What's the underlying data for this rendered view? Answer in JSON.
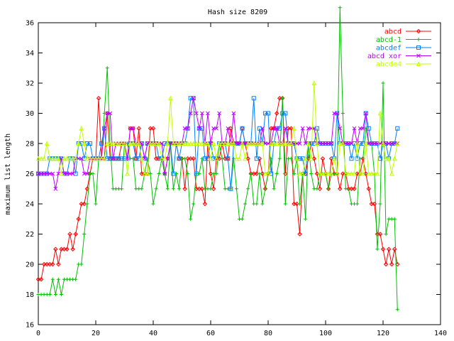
{
  "chart_data": {
    "type": "line",
    "title": "Hash size 8209",
    "xlabel": "",
    "ylabel": "maximum list length",
    "xlim": [
      0,
      140
    ],
    "ylim": [
      16,
      36
    ],
    "x_ticks": [
      0,
      20,
      40,
      60,
      80,
      100,
      120,
      140
    ],
    "y_ticks": [
      16,
      18,
      20,
      22,
      24,
      26,
      28,
      30,
      32,
      34,
      36
    ],
    "grid": false,
    "legend_position": "top-right",
    "series": [
      {
        "name": "abcd",
        "color": "#ff0000",
        "marker": "diamond",
        "values": [
          19,
          19,
          20,
          20,
          20,
          20,
          21,
          20,
          21,
          21,
          21,
          22,
          21,
          22,
          23,
          24,
          24,
          25,
          26,
          27,
          27,
          31,
          27,
          27,
          30,
          27,
          27,
          27,
          27,
          28,
          28,
          27,
          29,
          29,
          27,
          29,
          26,
          26,
          26,
          29,
          29,
          27,
          27,
          27,
          26,
          27,
          28,
          28,
          28,
          27,
          27,
          25,
          27,
          27,
          27,
          25,
          25,
          25,
          24,
          28,
          26,
          25,
          27,
          27,
          28,
          27,
          27,
          29,
          28,
          28,
          28,
          29,
          28,
          27,
          26,
          26,
          26,
          27,
          26,
          25,
          26,
          29,
          29,
          30,
          31,
          31,
          26,
          29,
          29,
          24,
          24,
          22,
          26,
          26,
          27,
          28,
          27,
          26,
          25,
          27,
          26,
          25,
          27,
          26,
          26,
          25,
          26,
          26,
          25,
          25,
          25,
          26,
          26,
          27,
          26,
          25,
          24,
          24,
          22,
          22,
          21,
          20,
          21,
          20,
          21,
          20
        ]
      },
      {
        "name": "abcd-1",
        "color": "#00c000",
        "marker": "plus",
        "values": [
          18,
          18,
          18,
          18,
          18,
          19,
          18,
          19,
          18,
          19,
          19,
          19,
          19,
          19,
          20,
          20,
          22,
          24,
          26,
          26,
          24,
          27,
          27,
          30,
          33,
          28,
          25,
          25,
          25,
          25,
          28,
          28,
          27,
          27,
          25,
          25,
          25,
          26,
          27,
          26,
          24,
          25,
          26,
          27,
          26,
          25,
          28,
          25,
          26,
          25,
          27,
          27,
          26,
          23,
          24,
          26,
          26,
          27,
          25,
          25,
          25,
          26,
          26,
          28,
          27,
          25,
          25,
          25,
          27,
          25,
          23,
          23,
          24,
          25,
          26,
          24,
          24,
          26,
          24,
          25,
          26,
          27,
          25,
          26,
          27,
          31,
          24,
          27,
          27,
          26,
          27,
          24,
          26,
          23,
          28,
          26,
          25,
          25,
          26,
          26,
          26,
          25,
          26,
          26,
          26,
          37,
          30,
          25,
          25,
          24,
          24,
          24,
          27,
          27,
          29,
          28,
          28,
          26,
          21,
          24,
          32,
          22,
          23,
          23,
          23,
          17
        ]
      },
      {
        "name": "abcdef",
        "color": "#0080ff",
        "marker": "square",
        "values": [
          26,
          26,
          26,
          26,
          27,
          27,
          27,
          27,
          27,
          26,
          26,
          27,
          27,
          26,
          28,
          28,
          27,
          28,
          28,
          27,
          27,
          27,
          28,
          29,
          27,
          27,
          27,
          27,
          27,
          27,
          27,
          27,
          28,
          28,
          27,
          27,
          28,
          27,
          28,
          28,
          28,
          28,
          27,
          27,
          28,
          28,
          28,
          26,
          28,
          27,
          28,
          28,
          29,
          31,
          31,
          26,
          29,
          29,
          27,
          27,
          28,
          27,
          27,
          28,
          28,
          28,
          27,
          25,
          28,
          28,
          28,
          29,
          28,
          28,
          28,
          31,
          27,
          29,
          28,
          30,
          30,
          26,
          28,
          29,
          29,
          30,
          30,
          28,
          28,
          28,
          27,
          27,
          27,
          26,
          28,
          28,
          28,
          29,
          28,
          28,
          28,
          28,
          28,
          27,
          30,
          28,
          28,
          28,
          28,
          27,
          28,
          27,
          28,
          28,
          30,
          29,
          28,
          28,
          28,
          27,
          28,
          28,
          27,
          28,
          28,
          29
        ]
      },
      {
        "name": "abcd xor",
        "color": "#c000ff",
        "marker": "cross",
        "values": [
          26,
          26,
          26,
          26,
          26,
          26,
          25,
          26,
          27,
          26,
          26,
          26,
          26,
          27,
          27,
          27,
          26,
          26,
          27,
          27,
          27,
          27,
          27,
          29,
          30,
          30,
          27,
          28,
          28,
          28,
          28,
          27,
          29,
          29,
          28,
          28,
          28,
          27,
          28,
          28,
          28,
          28,
          28,
          28,
          26,
          27,
          28,
          28,
          28,
          28,
          28,
          29,
          29,
          30,
          31,
          30,
          29,
          30,
          28,
          30,
          28,
          29,
          29,
          30,
          28,
          28,
          29,
          28,
          30,
          28,
          28,
          28,
          28,
          28,
          28,
          28,
          28,
          28,
          29,
          28,
          28,
          28,
          29,
          29,
          28,
          28,
          29,
          28,
          28,
          28,
          28,
          28,
          29,
          28,
          29,
          29,
          29,
          28,
          28,
          28,
          28,
          28,
          28,
          30,
          30,
          29,
          28,
          28,
          28,
          28,
          29,
          28,
          29,
          29,
          30,
          28,
          28,
          28,
          28,
          28,
          28,
          28,
          28,
          28,
          28,
          28
        ]
      },
      {
        "name": "abcde4",
        "color": "#c0ff00",
        "marker": "triangle",
        "values": [
          27,
          27,
          27,
          28,
          27,
          27,
          27,
          27,
          26,
          27,
          27,
          27,
          27,
          27,
          28,
          29,
          28,
          27,
          27,
          27,
          27,
          27,
          27,
          27,
          28,
          28,
          28,
          28,
          28,
          28,
          28,
          26,
          28,
          28,
          28,
          28,
          27,
          26,
          26,
          28,
          28,
          28,
          28,
          27,
          27,
          28,
          31,
          28,
          28,
          28,
          28,
          28,
          28,
          28,
          28,
          28,
          28,
          28,
          28,
          28,
          27,
          28,
          27,
          28,
          28,
          28,
          28,
          28,
          28,
          27,
          27,
          28,
          27,
          28,
          28,
          28,
          28,
          28,
          28,
          26,
          26,
          28,
          28,
          28,
          28,
          28,
          28,
          28,
          28,
          29,
          27,
          26,
          26,
          27,
          28,
          27,
          32,
          28,
          26,
          26,
          26,
          26,
          26,
          27,
          26,
          28,
          28,
          26,
          26,
          26,
          26,
          28,
          26,
          26,
          28,
          26,
          26,
          26,
          26,
          30,
          28,
          27,
          27,
          26,
          27,
          28
        ]
      }
    ]
  }
}
